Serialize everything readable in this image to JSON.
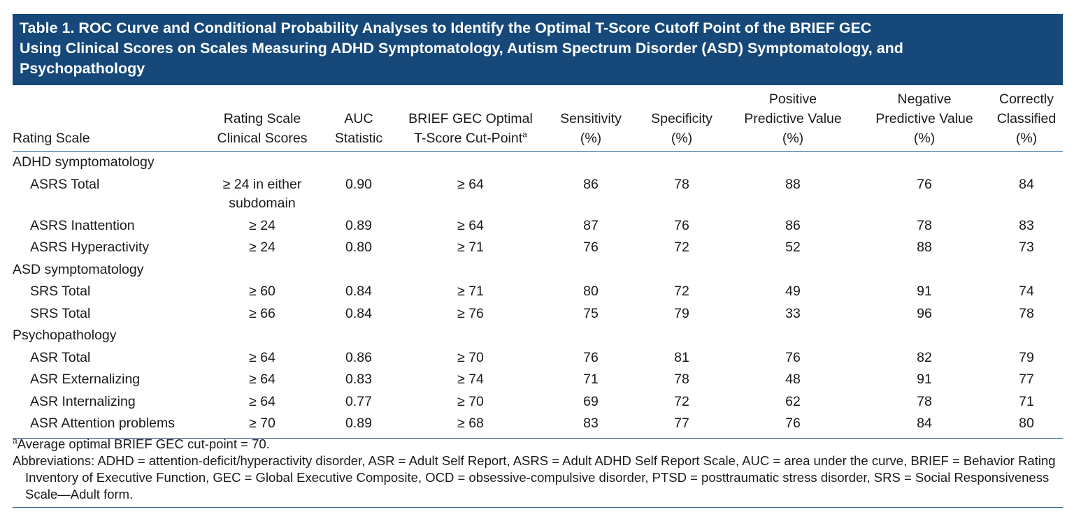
{
  "title": [
    "Table 1. ROC Curve and Conditional Probability Analyses to Identify the Optimal T-Score Cutoff Point of the BRIEF GEC",
    "Using Clinical Scores on Scales Measuring ADHD Symptomatology, Autism Spectrum Disorder (ASD) Symptomatology, and",
    "Psychopathology"
  ],
  "table": {
    "header": [
      {
        "lines": [
          "Rating Scale"
        ]
      },
      {
        "lines": [
          "Rating Scale",
          "Clinical Scores"
        ]
      },
      {
        "lines": [
          "AUC",
          "Statistic"
        ]
      },
      {
        "lines": [
          "BRIEF GEC Optimal",
          "T-Score Cut-Point"
        ],
        "marker": "a"
      },
      {
        "lines": [
          "Sensitivity",
          "(%)"
        ]
      },
      {
        "lines": [
          "Specificity",
          "(%)"
        ]
      },
      {
        "lines": [
          "Positive",
          "Predictive Value",
          "(%)"
        ]
      },
      {
        "lines": [
          "Negative",
          "Predictive Value",
          "(%)"
        ]
      },
      {
        "lines": [
          "Correctly",
          "Classified",
          "(%)"
        ]
      }
    ],
    "groups": [
      {
        "label": "ADHD symptomatology",
        "rows": [
          [
            "ASRS Total",
            "≥ 24 in either subdomain",
            "0.90",
            "≥ 64",
            "86",
            "78",
            "88",
            "76",
            "84"
          ],
          [
            "ASRS Inattention",
            "≥ 24",
            "0.89",
            "≥ 64",
            "87",
            "76",
            "86",
            "78",
            "83"
          ],
          [
            "ASRS Hyperactivity",
            "≥ 24",
            "0.80",
            "≥ 71",
            "76",
            "72",
            "52",
            "88",
            "73"
          ]
        ]
      },
      {
        "label": "ASD symptomatology",
        "rows": [
          [
            "SRS Total",
            "≥ 60",
            "0.84",
            "≥ 71",
            "80",
            "72",
            "49",
            "91",
            "74"
          ],
          [
            "SRS Total",
            "≥ 66",
            "0.84",
            "≥ 76",
            "75",
            "79",
            "33",
            "96",
            "78"
          ]
        ]
      },
      {
        "label": "Psychopathology",
        "rows": [
          [
            "ASR Total",
            "≥ 64",
            "0.86",
            "≥ 70",
            "76",
            "81",
            "76",
            "82",
            "79"
          ],
          [
            "ASR Externalizing",
            "≥ 64",
            "0.83",
            "≥ 74",
            "71",
            "78",
            "48",
            "91",
            "77"
          ],
          [
            "ASR Internalizing",
            "≥ 64",
            "0.77",
            "≥ 70",
            "69",
            "72",
            "62",
            "78",
            "71"
          ],
          [
            "ASR Attention problems",
            "≥ 70",
            "0.89",
            "≥ 68",
            "83",
            "77",
            "76",
            "84",
            "80"
          ]
        ]
      }
    ]
  },
  "footnotes": {
    "marker": "a",
    "note": "Average optimal BRIEF GEC cut-point = 70.",
    "abbreviations": "Abbreviations: ADHD = attention-deficit/hyperactivity disorder, ASR = Adult Self Report, ASRS = Adult ADHD Self Report Scale, AUC = area under the curve, BRIEF = Behavior Rating Inventory of Executive Function, GEC = Global Executive Composite, OCD = obsessive-compulsive disorder, PTSD = posttraumatic stress disorder, SRS = Social Responsiveness Scale—Adult form."
  }
}
